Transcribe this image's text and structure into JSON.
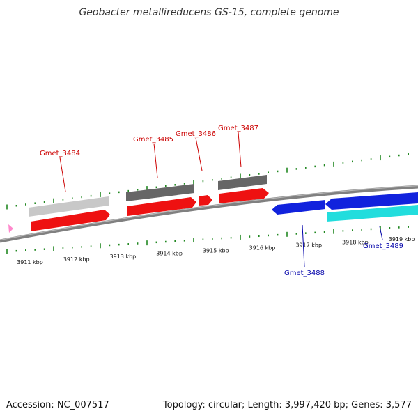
{
  "title": "Geobacter metallireducens GS-15, complete genome",
  "footer": {
    "accession": "Accession: NC_007517",
    "summary": "Topology: circular; Length: 3,997,420 bp; Genes: 3,577"
  },
  "colors": {
    "forward_gene": "#ee1111",
    "reverse_gene": "#1122dd",
    "forward_label": "#cc0000",
    "reverse_label": "#0000aa",
    "backbone": "#808080",
    "tick": "#228822",
    "cds_gray_light": "#c8c8c8",
    "cds_gray_dark": "#666666",
    "cds_cyan": "#22dddd"
  },
  "scale_labels": [
    "3911 kbp",
    "3912 kbp",
    "3913 kbp",
    "3914 kbp",
    "3915 kbp",
    "3916 kbp",
    "3917 kbp",
    "3918 kbp",
    "3919 kbp"
  ],
  "genes": [
    {
      "id": "Gmet_3484",
      "strand": "forward"
    },
    {
      "id": "Gmet_3485",
      "strand": "forward"
    },
    {
      "id": "Gmet_3486",
      "strand": "forward"
    },
    {
      "id": "Gmet_3487",
      "strand": "forward"
    },
    {
      "id": "Gmet_3488",
      "strand": "reverse"
    },
    {
      "id": "Gmet_3489",
      "strand": "reverse"
    }
  ]
}
